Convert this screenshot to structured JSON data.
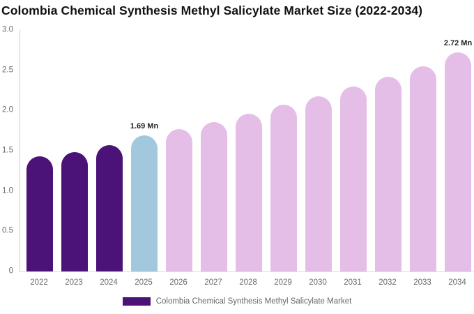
{
  "chart": {
    "title": "Colombia Chemical Synthesis Methyl Salicylate Market Size (2022-2034)"
  },
  "legend": {
    "label": "Colombia Chemical Synthesis Methyl Salicylate Market",
    "swatch_color": "#4B1377"
  },
  "chart_data": {
    "type": "bar",
    "title": "Colombia Chemical Synthesis Methyl Salicylate Market Size (2022-2034)",
    "unit": "Mn",
    "categories": [
      "2022",
      "2023",
      "2024",
      "2025",
      "2026",
      "2027",
      "2028",
      "2029",
      "2030",
      "2031",
      "2032",
      "2033",
      "2034"
    ],
    "series": [
      {
        "name": "Colombia Chemical Synthesis Methyl Salicylate Market",
        "values": [
          1.43,
          1.48,
          1.57,
          1.69,
          1.77,
          1.86,
          1.96,
          2.07,
          2.18,
          2.3,
          2.42,
          2.55,
          2.72
        ]
      }
    ],
    "bar_colors": [
      "#4B1377",
      "#4B1377",
      "#4B1377",
      "#A2C8DD",
      "#E5BEE8",
      "#E5BEE8",
      "#E5BEE8",
      "#E5BEE8",
      "#E5BEE8",
      "#E5BEE8",
      "#E5BEE8",
      "#E5BEE8",
      "#E5BEE8"
    ],
    "color_legend": {
      "historical": "#4B1377",
      "base_year_estimate": "#A2C8DD",
      "forecast": "#E5BEE8"
    },
    "annotations": [
      {
        "category": "2025",
        "text": "1.69 Mn"
      },
      {
        "category": "2034",
        "text": "2.72 Mn"
      }
    ],
    "ylim": [
      0,
      3.0
    ],
    "yticks": [
      {
        "label": "3.0",
        "value": 3.0
      },
      {
        "label": "2.5",
        "value": 2.5
      },
      {
        "label": "2.0",
        "value": 2.0
      },
      {
        "label": "1.5",
        "value": 1.5
      },
      {
        "label": "1.0",
        "value": 1.0
      },
      {
        "label": "0.5",
        "value": 0.5
      },
      {
        "label": "0",
        "value": 0
      }
    ],
    "xlabel": "",
    "ylabel": "",
    "grid": false,
    "legend_position": "bottom",
    "axis_color": "#cccccc",
    "tick_label_color": "#6b6b6b",
    "annotation_color": "#222222"
  }
}
